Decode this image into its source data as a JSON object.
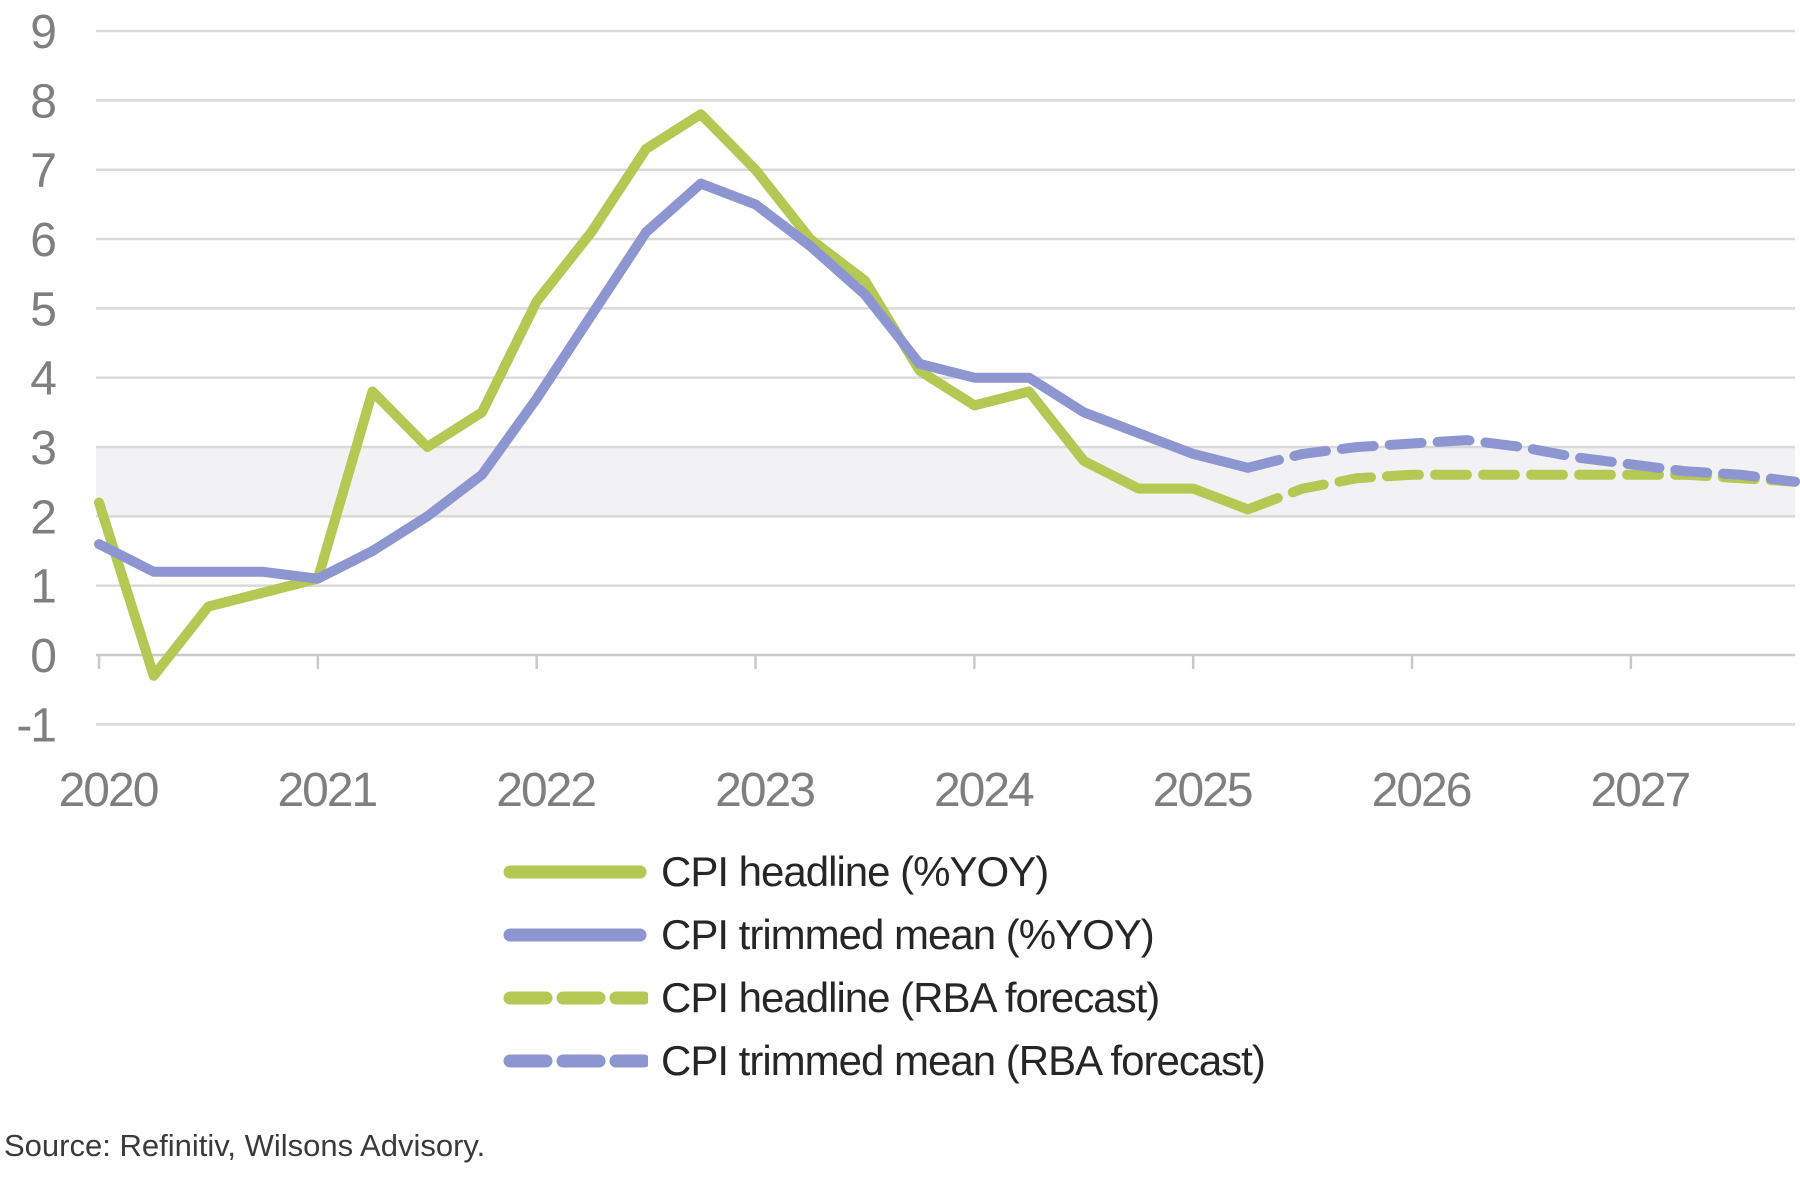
{
  "source_note": "Source: Refinitiv, Wilsons Advisory.",
  "chart_data": {
    "type": "line",
    "title": "",
    "xlabel": "",
    "ylabel": "",
    "grid": true,
    "legend_position": "bottom-center",
    "ylim": [
      -1,
      9
    ],
    "y_axis": {
      "tick_values": [
        9,
        8,
        7,
        6,
        5,
        4,
        3,
        2,
        1,
        0,
        -1
      ],
      "tick_labels": [
        "9",
        "8",
        "7",
        "6",
        "5",
        "4",
        "3",
        "2",
        "1",
        "0",
        "-1"
      ]
    },
    "x_axis": {
      "year_tick_labels": [
        "2020",
        "2021",
        "2022",
        "2023",
        "2024",
        "2025",
        "2026",
        "2027"
      ]
    },
    "target_band": {
      "from": 2,
      "to": 3
    },
    "categories": [
      "2020 Q1",
      "2020 Q2",
      "2020 Q3",
      "2020 Q4",
      "2021 Q1",
      "2021 Q2",
      "2021 Q3",
      "2021 Q4",
      "2022 Q1",
      "2022 Q2",
      "2022 Q3",
      "2022 Q4",
      "2023 Q1",
      "2023 Q2",
      "2023 Q3",
      "2023 Q4",
      "2024 Q1",
      "2024 Q2",
      "2024 Q3",
      "2024 Q4",
      "2025 Q1",
      "2025 Q2",
      "2025 Q3",
      "2025 Q4",
      "2026 Q1",
      "2026 Q2",
      "2026 Q3",
      "2026 Q4",
      "2027 Q1",
      "2027 Q2",
      "2027 Q3",
      "2027 Q4"
    ],
    "series": [
      {
        "label": "CPI headline (%YOY)",
        "color_key": "headline",
        "style": "solid",
        "values": [
          2.2,
          -0.3,
          0.7,
          0.9,
          1.1,
          3.8,
          3.0,
          3.5,
          5.1,
          6.1,
          7.3,
          7.8,
          7.0,
          6.0,
          5.4,
          4.1,
          3.6,
          3.8,
          2.8,
          2.4,
          2.4,
          2.1,
          null,
          null,
          null,
          null,
          null,
          null,
          null,
          null,
          null,
          null
        ]
      },
      {
        "label": "CPI trimmed mean (%YOY)",
        "color_key": "trimmed",
        "style": "solid",
        "values": [
          1.6,
          1.2,
          1.2,
          1.2,
          1.1,
          1.5,
          2.0,
          2.6,
          3.7,
          4.9,
          6.1,
          6.8,
          6.5,
          5.9,
          5.2,
          4.2,
          4.0,
          4.0,
          3.5,
          3.2,
          2.9,
          2.7,
          null,
          null,
          null,
          null,
          null,
          null,
          null,
          null,
          null,
          null
        ]
      },
      {
        "label": "CPI headline (RBA forecast)",
        "color_key": "headline",
        "style": "dashed",
        "values": [
          null,
          null,
          null,
          null,
          null,
          null,
          null,
          null,
          null,
          null,
          null,
          null,
          null,
          null,
          null,
          null,
          null,
          null,
          null,
          null,
          null,
          2.1,
          2.4,
          2.55,
          2.6,
          2.6,
          2.6,
          2.6,
          2.6,
          2.6,
          2.55,
          2.5
        ]
      },
      {
        "label": "CPI trimmed mean (RBA forecast)",
        "color_key": "trimmed",
        "style": "dashed",
        "values": [
          null,
          null,
          null,
          null,
          null,
          null,
          null,
          null,
          null,
          null,
          null,
          null,
          null,
          null,
          null,
          null,
          null,
          null,
          null,
          null,
          null,
          2.7,
          2.9,
          3.0,
          3.05,
          3.1,
          3.0,
          2.85,
          2.75,
          2.65,
          2.6,
          2.5
        ]
      }
    ],
    "colors": {
      "headline": "#b4c854",
      "trimmed": "#8d96d0",
      "gridline": "#d9d9d9",
      "axis": "#c9c9c9",
      "band": "#f2f2f4",
      "axis_label": "#7f7f7f",
      "legend_text": "#262626",
      "source_text": "#3a3a3a"
    }
  }
}
